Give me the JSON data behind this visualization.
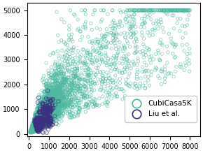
{
  "cubicasa_n": 5000,
  "liu_n": 815,
  "cubicasa_color": "#4db8a0",
  "liu_color": "#3b3080",
  "marker_size_cubicasa": 10,
  "marker_size_liu": 14,
  "xlim": [
    -100,
    8500
  ],
  "ylim": [
    -100,
    5300
  ],
  "xticks": [
    0,
    1000,
    2000,
    3000,
    4000,
    5000,
    6000,
    7000,
    8000
  ],
  "yticks": [
    0,
    1000,
    2000,
    3000,
    4000,
    5000
  ],
  "seed": 12345,
  "fig_width": 2.9,
  "fig_height": 2.19
}
